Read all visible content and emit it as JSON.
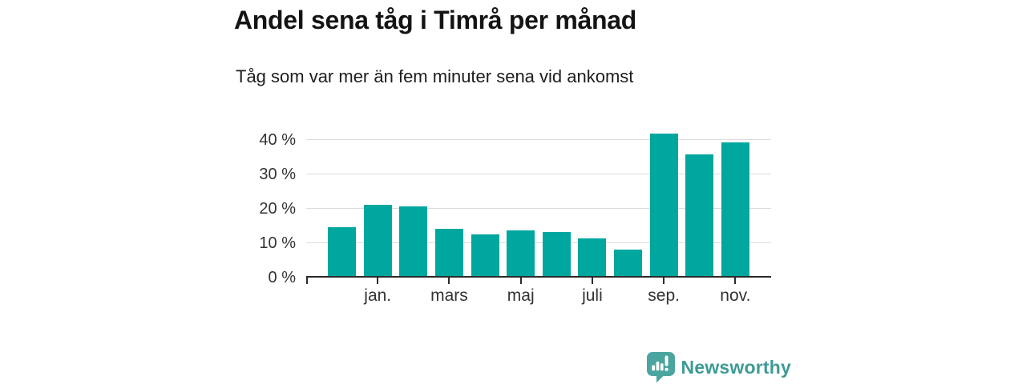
{
  "header": {
    "title": "Andel sena tåg i Timrå per månad",
    "subtitle": "Tåg som var mer än fem minuter sena vid ankomst"
  },
  "chart_data": {
    "type": "bar",
    "title": "Andel sena tåg i Timrå per månad",
    "subtitle": "Tåg som var mer än fem minuter sena vid ankomst",
    "unit": "%",
    "categories": [
      "",
      "jan.",
      "",
      "mars",
      "",
      "maj",
      "",
      "juli",
      "",
      "sep.",
      "",
      "nov."
    ],
    "values": [
      14.7,
      21.1,
      20.6,
      14.2,
      12.6,
      13.8,
      13.2,
      11.4,
      8.1,
      41.9,
      35.8,
      39.2
    ],
    "y_ticks": [
      0,
      10,
      20,
      30,
      40
    ],
    "y_tick_labels": [
      "0 %",
      "10 %",
      "20 %",
      "30 %",
      "40 %"
    ],
    "ylim": [
      0,
      43
    ],
    "grid": "horizontal-only",
    "legend": "none",
    "bar_color": "#00a79e",
    "axis_color": "#2b2b2b",
    "gridline_color": "#dcdcdc",
    "tick_label_color": "#333333"
  },
  "branding": {
    "logo_text": "Newsworthy",
    "logo_text_color": "#3d9b95",
    "logo_icon_color": "#4aa5a0",
    "logo_icon": "bar-chart-speech-bubble-icon"
  }
}
